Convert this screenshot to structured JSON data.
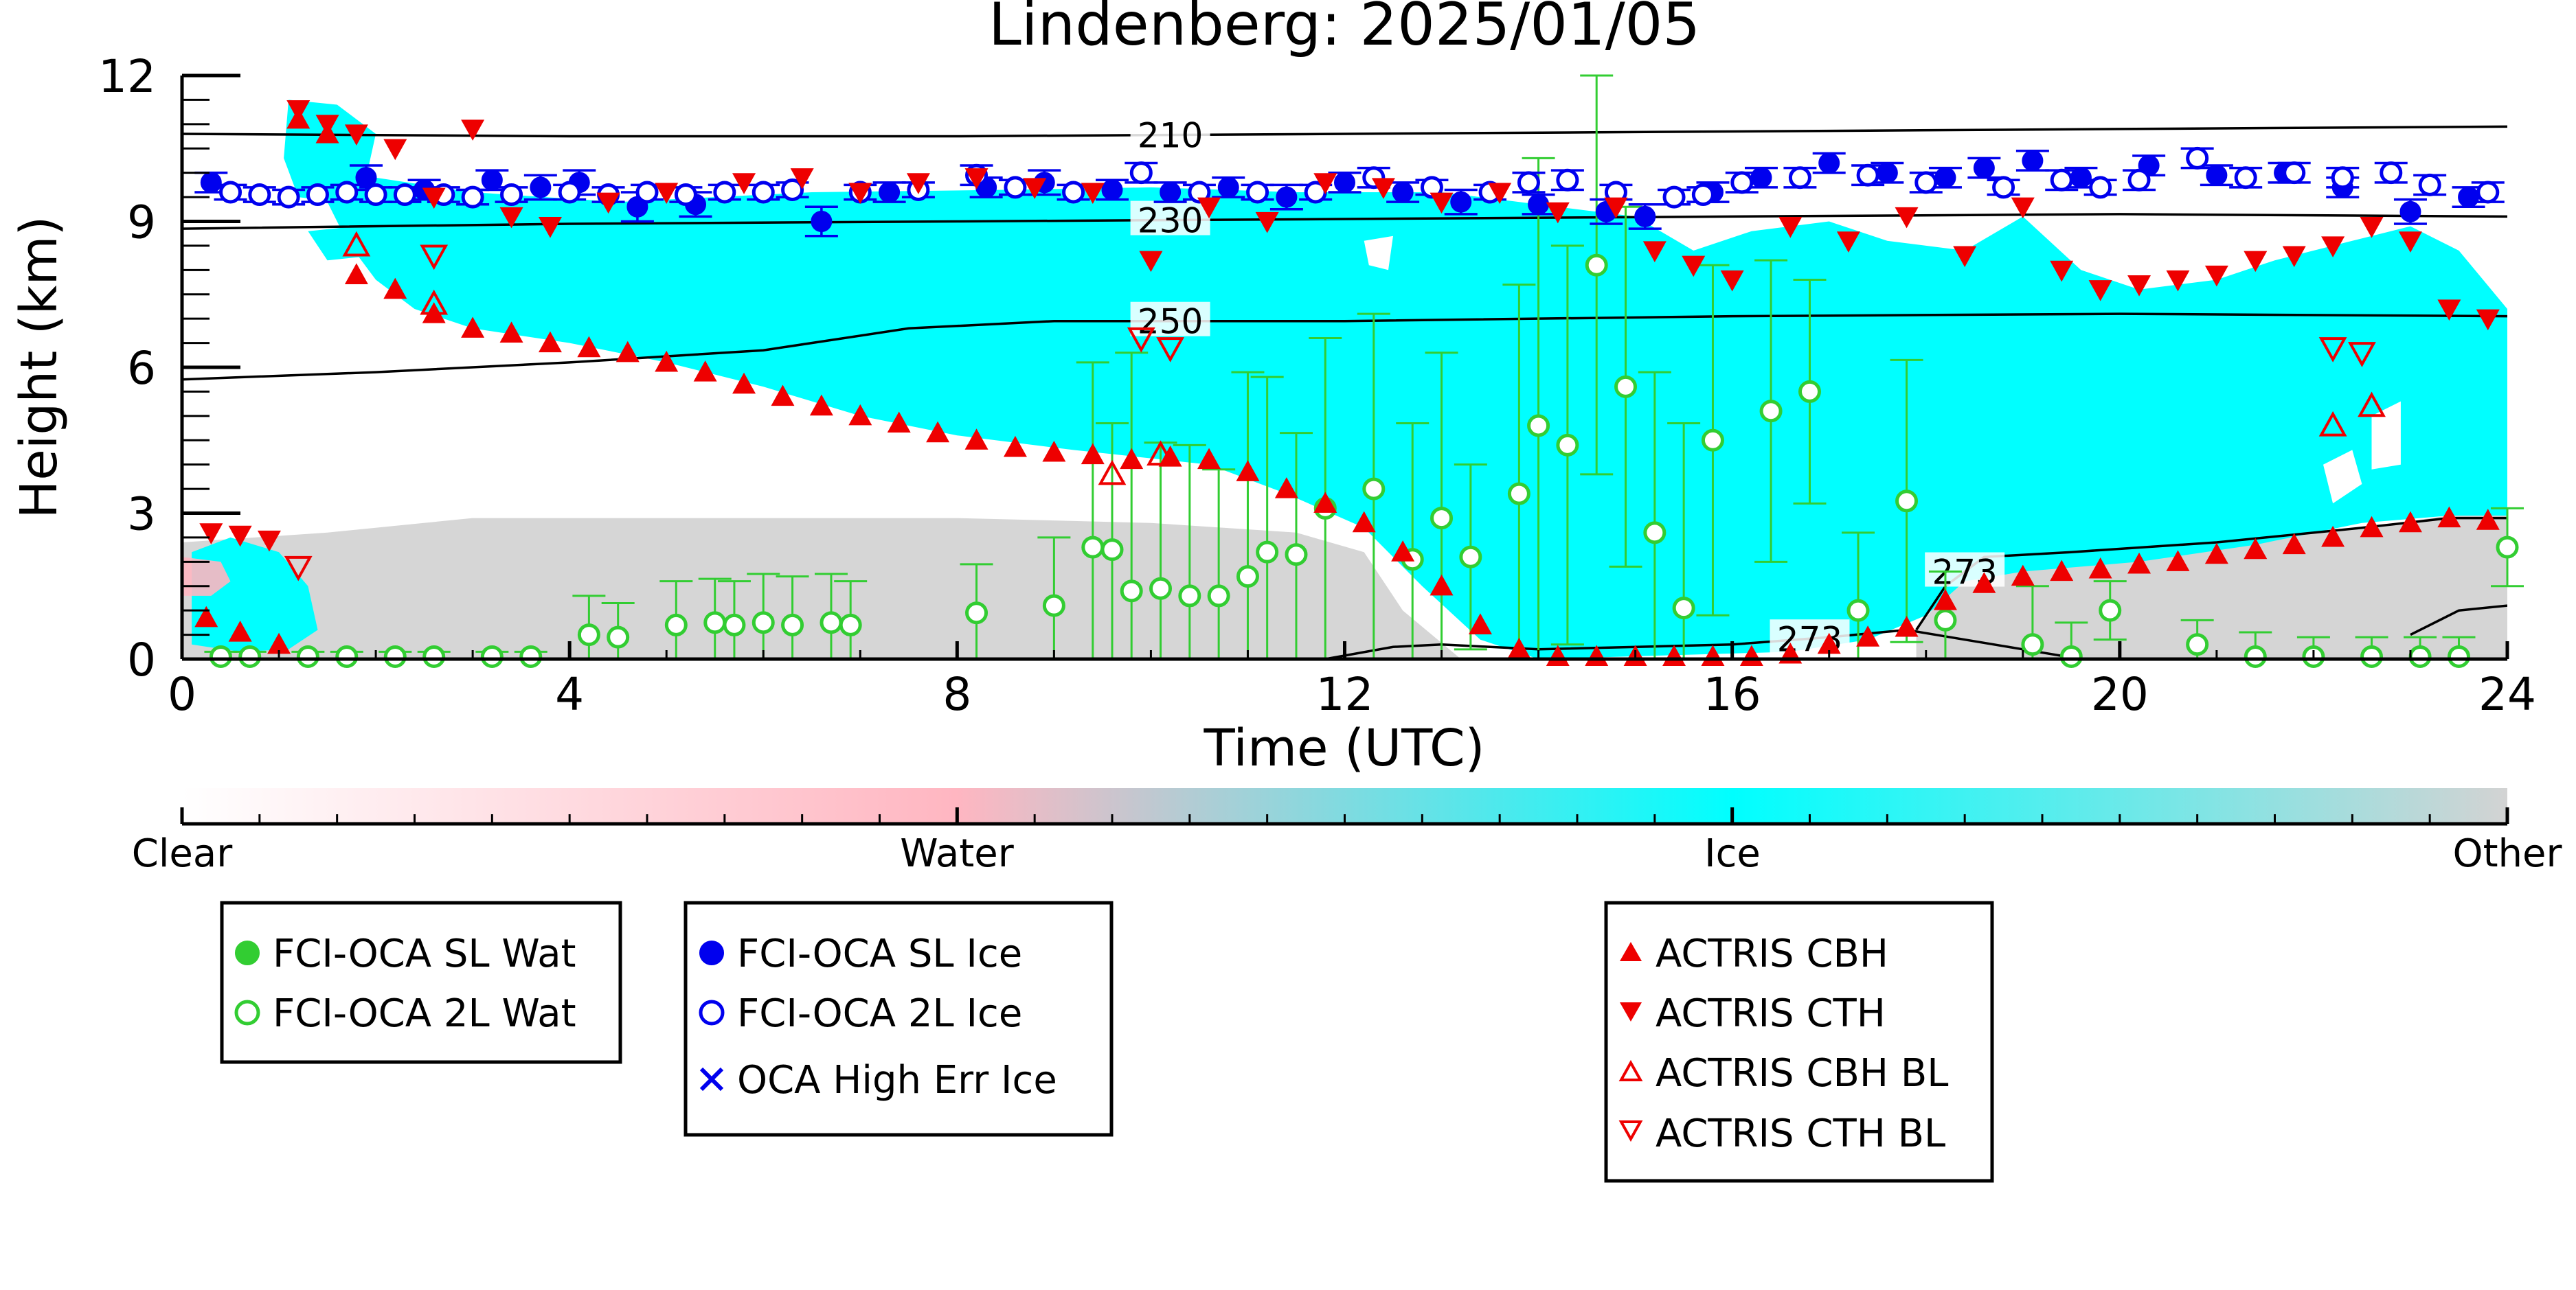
{
  "chart_data": {
    "type": "scatter",
    "title": "Lindenberg: 2025/01/05",
    "xlabel": "Time (UTC)",
    "ylabel": "Height (km)",
    "xlim": [
      0,
      24
    ],
    "ylim": [
      0,
      12
    ],
    "x_ticks": [
      "0",
      "4",
      "8",
      "12",
      "16",
      "20",
      "24"
    ],
    "y_ticks": [
      "0",
      "3",
      "6",
      "9",
      "12"
    ],
    "grid": false,
    "background": {
      "classes": [
        "Clear",
        "Water",
        "Ice",
        "Other"
      ],
      "colors": {
        "Clear": "#ffffff",
        "Water": "#ffb6c1",
        "Ice": "#00ffff",
        "Other": "#d3d3d3"
      }
    },
    "isotherms": [
      {
        "label": "210",
        "x": [
          0,
          4,
          8,
          12,
          16,
          20,
          24
        ],
        "y": [
          10.8,
          10.75,
          10.75,
          10.8,
          10.85,
          10.9,
          10.95
        ]
      },
      {
        "label": "230",
        "x": [
          0,
          4,
          8,
          12,
          16,
          20,
          24
        ],
        "y": [
          8.85,
          8.95,
          9.0,
          9.05,
          9.1,
          9.15,
          9.1
        ]
      },
      {
        "label": "250",
        "x": [
          0,
          2,
          4,
          6,
          7.5,
          9,
          12,
          16,
          20,
          24
        ],
        "y": [
          5.75,
          5.9,
          6.1,
          6.35,
          6.8,
          6.95,
          6.95,
          7.05,
          7.1,
          7.05
        ]
      },
      {
        "label": "273",
        "x": [
          11.8,
          12.5,
          13,
          14,
          16,
          17,
          17.8,
          18.4,
          19,
          19.6
        ],
        "y": [
          0.0,
          0.25,
          0.3,
          0.2,
          0.3,
          0.45,
          0.6,
          0.4,
          0.2,
          0.0
        ]
      },
      {
        "label": "273",
        "x": [
          17.9,
          18.2,
          18.6,
          19.5,
          21,
          22.5,
          23.4,
          24
        ],
        "y": [
          0.6,
          1.5,
          2.1,
          2.2,
          2.4,
          2.7,
          2.9,
          2.9
        ]
      },
      {
        "label": "",
        "x": [
          23.0,
          23.5,
          24
        ],
        "y": [
          0.5,
          1.0,
          1.1
        ]
      }
    ],
    "legend": {
      "boxes": [
        [
          "FCI-OCA SL Wat",
          "FCI-OCA 2L Wat"
        ],
        [
          "FCI-OCA SL Ice",
          "FCI-OCA 2L Ice",
          "OCA High Err Ice"
        ],
        [
          "ACTRIS CBH",
          "ACTRIS CTH",
          "ACTRIS CBH BL",
          "ACTRIS CTH BL"
        ]
      ]
    },
    "series": [
      {
        "name": "FCI-OCA SL Wat",
        "marker": "filled-circle",
        "color": "#32cd32",
        "x": [],
        "y": []
      },
      {
        "name": "FCI-OCA 2L Wat",
        "marker": "open-circle",
        "color": "#32cd32",
        "x": [
          0.4,
          0.7,
          1.3,
          1.7,
          2.2,
          2.6,
          3.2,
          3.6,
          4.2,
          4.5,
          5.1,
          5.5,
          5.7,
          6.0,
          6.3,
          6.7,
          6.9,
          8.2,
          9.0,
          9.4,
          9.6,
          9.8,
          10.1,
          10.4,
          10.7,
          11.0,
          11.2,
          11.5,
          11.8,
          12.3,
          12.7,
          13.0,
          13.3,
          13.8,
          14.0,
          14.3,
          14.6,
          14.9,
          15.2,
          15.5,
          15.8,
          16.4,
          16.8,
          17.3,
          17.8,
          18.2,
          19.1,
          19.5,
          19.9,
          20.8,
          21.4,
          22.0,
          22.6,
          23.1,
          23.5,
          24.0
        ],
        "y": [
          0.05,
          0.05,
          0.05,
          0.05,
          0.05,
          0.05,
          0.05,
          0.05,
          0.5,
          0.45,
          0.7,
          0.75,
          0.7,
          0.75,
          0.7,
          0.75,
          0.7,
          0.95,
          1.1,
          2.3,
          2.25,
          1.4,
          1.45,
          1.3,
          1.3,
          1.7,
          2.2,
          2.15,
          3.1,
          3.5,
          2.05,
          2.9,
          2.1,
          3.4,
          4.8,
          4.4,
          8.1,
          5.6,
          2.6,
          1.05,
          4.5,
          5.1,
          5.5,
          1.0,
          3.25,
          0.8,
          0.3,
          0.05,
          1.0,
          0.3,
          0.05,
          0.05,
          0.05,
          0.05,
          0.05,
          2.3
        ],
        "yerr": [
          0.1,
          0.1,
          0.1,
          0.1,
          0.1,
          0.1,
          0.1,
          0.1,
          0.8,
          0.7,
          0.9,
          0.9,
          0.9,
          1.0,
          1.0,
          1.0,
          0.9,
          1.0,
          1.4,
          3.8,
          2.6,
          4.9,
          3.0,
          3.1,
          2.6,
          4.2,
          3.6,
          2.5,
          3.5,
          3.6,
          2.8,
          3.4,
          1.9,
          4.3,
          5.5,
          4.1,
          4.3,
          3.7,
          3.3,
          3.8,
          3.6,
          3.1,
          2.3,
          1.6,
          2.9,
          1.0,
          1.2,
          0.7,
          0.6,
          0.5,
          0.5,
          0.4,
          0.4,
          0.4,
          0.4,
          0.8
        ]
      },
      {
        "name": "FCI-OCA SL Ice",
        "marker": "filled-circle",
        "color": "#0000ee",
        "x": [
          0.3,
          1.9,
          2.5,
          3.2,
          3.7,
          4.1,
          4.7,
          5.3,
          6.6,
          7.3,
          8.3,
          8.9,
          9.6,
          10.2,
          10.8,
          11.4,
          12.0,
          12.6,
          13.2,
          14.0,
          14.7,
          15.1,
          15.8,
          16.3,
          17.0,
          17.6,
          18.2,
          18.6,
          19.1,
          19.6,
          20.3,
          21.0,
          21.7,
          22.3,
          23.0,
          23.6
        ],
        "y": [
          9.8,
          9.9,
          9.65,
          9.85,
          9.7,
          9.8,
          9.3,
          9.35,
          9.0,
          9.6,
          9.7,
          9.8,
          9.65,
          9.6,
          9.7,
          9.5,
          9.8,
          9.6,
          9.4,
          9.35,
          9.2,
          9.1,
          9.6,
          9.9,
          10.2,
          10.0,
          9.9,
          10.1,
          10.25,
          9.9,
          10.15,
          9.95,
          10.0,
          9.7,
          9.2,
          9.5
        ],
        "yerr": [
          0.2,
          0.25,
          0.2,
          0.2,
          0.25,
          0.25,
          0.3,
          0.25,
          0.3,
          0.2,
          0.2,
          0.25,
          0.2,
          0.2,
          0.2,
          0.25,
          0.2,
          0.2,
          0.25,
          0.2,
          0.25,
          0.25,
          0.2,
          0.2,
          0.2,
          0.2,
          0.2,
          0.2,
          0.2,
          0.2,
          0.2,
          0.2,
          0.2,
          0.2,
          0.25,
          0.2
        ]
      },
      {
        "name": "FCI-OCA 2L Ice",
        "marker": "open-circle",
        "color": "#0000ee",
        "x": [
          0.5,
          0.8,
          1.1,
          1.4,
          1.7,
          2.0,
          2.3,
          2.7,
          3.0,
          3.4,
          4.0,
          4.4,
          4.8,
          5.2,
          5.6,
          6.0,
          6.3,
          7.0,
          7.6,
          8.2,
          8.6,
          9.2,
          9.9,
          10.5,
          11.1,
          11.7,
          12.3,
          12.9,
          13.5,
          13.9,
          14.3,
          14.8,
          15.4,
          15.7,
          16.1,
          16.7,
          17.4,
          18.0,
          18.8,
          19.4,
          19.8,
          20.2,
          20.8,
          21.3,
          21.8,
          22.3,
          22.8,
          23.2,
          23.8
        ],
        "y": [
          9.6,
          9.55,
          9.5,
          9.55,
          9.6,
          9.55,
          9.55,
          9.55,
          9.5,
          9.55,
          9.6,
          9.55,
          9.6,
          9.55,
          9.6,
          9.6,
          9.65,
          9.6,
          9.65,
          9.95,
          9.7,
          9.6,
          10.0,
          9.6,
          9.6,
          9.6,
          9.9,
          9.7,
          9.6,
          9.8,
          9.85,
          9.6,
          9.5,
          9.55,
          9.8,
          9.9,
          9.95,
          9.8,
          9.7,
          9.85,
          9.7,
          9.85,
          10.3,
          9.9,
          10.0,
          9.9,
          10.0,
          9.75,
          9.6
        ],
        "yerr": [
          0.15,
          0.15,
          0.15,
          0.15,
          0.15,
          0.15,
          0.15,
          0.15,
          0.15,
          0.15,
          0.15,
          0.15,
          0.15,
          0.15,
          0.15,
          0.15,
          0.15,
          0.15,
          0.15,
          0.2,
          0.15,
          0.15,
          0.2,
          0.15,
          0.15,
          0.15,
          0.2,
          0.15,
          0.15,
          0.2,
          0.2,
          0.15,
          0.15,
          0.15,
          0.2,
          0.2,
          0.2,
          0.2,
          0.15,
          0.2,
          0.15,
          0.2,
          0.2,
          0.2,
          0.2,
          0.2,
          0.2,
          0.2,
          0.2
        ]
      },
      {
        "name": "OCA High Err Ice",
        "marker": "x",
        "color": "#0000ee",
        "x": [],
        "y": []
      },
      {
        "name": "ACTRIS CBH",
        "marker": "triangle-up",
        "color": "#ee0000",
        "x": [
          0.25,
          0.6,
          1.0,
          1.2,
          1.5,
          1.8,
          2.2,
          2.6,
          3.0,
          3.4,
          3.8,
          4.2,
          4.6,
          5.0,
          5.4,
          5.8,
          6.2,
          6.6,
          7.0,
          7.4,
          7.8,
          8.2,
          8.6,
          9.0,
          9.4,
          9.8,
          10.2,
          10.6,
          11.0,
          11.4,
          11.8,
          12.2,
          12.6,
          13.0,
          13.4,
          13.8,
          14.2,
          14.6,
          15.0,
          15.4,
          15.8,
          16.2,
          16.6,
          17.0,
          17.4,
          17.8,
          18.2,
          18.6,
          19.0,
          19.4,
          19.8,
          20.2,
          20.6,
          21.0,
          21.4,
          21.8,
          22.2,
          22.6,
          23.0,
          23.4,
          23.8
        ],
        "y": [
          0.85,
          0.55,
          0.3,
          11.1,
          10.8,
          7.9,
          7.6,
          7.1,
          6.8,
          6.7,
          6.5,
          6.4,
          6.3,
          6.1,
          5.9,
          5.65,
          5.4,
          5.2,
          5.0,
          4.85,
          4.65,
          4.5,
          4.35,
          4.25,
          4.2,
          4.1,
          4.15,
          4.1,
          3.85,
          3.5,
          3.2,
          2.8,
          2.2,
          1.5,
          0.7,
          0.2,
          0.05,
          0.05,
          0.05,
          0.05,
          0.05,
          0.05,
          0.1,
          0.3,
          0.45,
          0.65,
          1.2,
          1.55,
          1.7,
          1.8,
          1.85,
          1.95,
          2.0,
          2.15,
          2.25,
          2.35,
          2.5,
          2.7,
          2.8,
          2.9,
          2.85
        ]
      },
      {
        "name": "ACTRIS CTH",
        "marker": "triangle-down",
        "color": "#ee0000",
        "x": [
          0.3,
          0.6,
          0.9,
          1.2,
          1.5,
          1.8,
          2.2,
          2.6,
          3.0,
          3.4,
          3.8,
          4.4,
          5.0,
          5.8,
          6.4,
          7.0,
          7.6,
          8.2,
          8.8,
          9.4,
          10.0,
          10.6,
          11.2,
          11.8,
          12.4,
          13.0,
          13.6,
          14.2,
          14.8,
          15.2,
          15.6,
          16.0,
          16.6,
          17.2,
          17.8,
          18.4,
          19.0,
          19.4,
          19.8,
          20.2,
          20.6,
          21.0,
          21.4,
          21.8,
          22.2,
          22.6,
          23.0,
          23.4,
          23.8
        ],
        "y": [
          2.6,
          2.55,
          2.45,
          11.3,
          11.0,
          10.8,
          10.5,
          9.5,
          10.9,
          9.1,
          8.9,
          9.4,
          9.6,
          9.8,
          9.9,
          9.6,
          9.8,
          9.9,
          9.7,
          9.6,
          8.2,
          9.3,
          9.0,
          9.8,
          9.7,
          9.4,
          9.6,
          9.2,
          9.3,
          8.4,
          8.1,
          7.8,
          8.9,
          8.6,
          9.1,
          8.3,
          9.3,
          8.0,
          7.6,
          7.7,
          7.8,
          7.9,
          8.2,
          8.3,
          8.5,
          8.9,
          8.6,
          7.2,
          7.0
        ]
      },
      {
        "name": "ACTRIS CBH BL",
        "marker": "open-triangle-up",
        "color": "#ee0000",
        "x": [
          1.8,
          2.6,
          9.6,
          10.1,
          22.2,
          22.6
        ],
        "y": [
          8.5,
          7.3,
          3.8,
          4.2,
          4.8,
          5.2
        ]
      },
      {
        "name": "ACTRIS CTH BL",
        "marker": "open-triangle-down",
        "color": "#ee0000",
        "x": [
          1.2,
          2.6,
          9.9,
          10.2,
          22.2,
          22.5
        ],
        "y": [
          1.9,
          8.3,
          6.6,
          6.4,
          6.4,
          6.3
        ]
      }
    ]
  }
}
